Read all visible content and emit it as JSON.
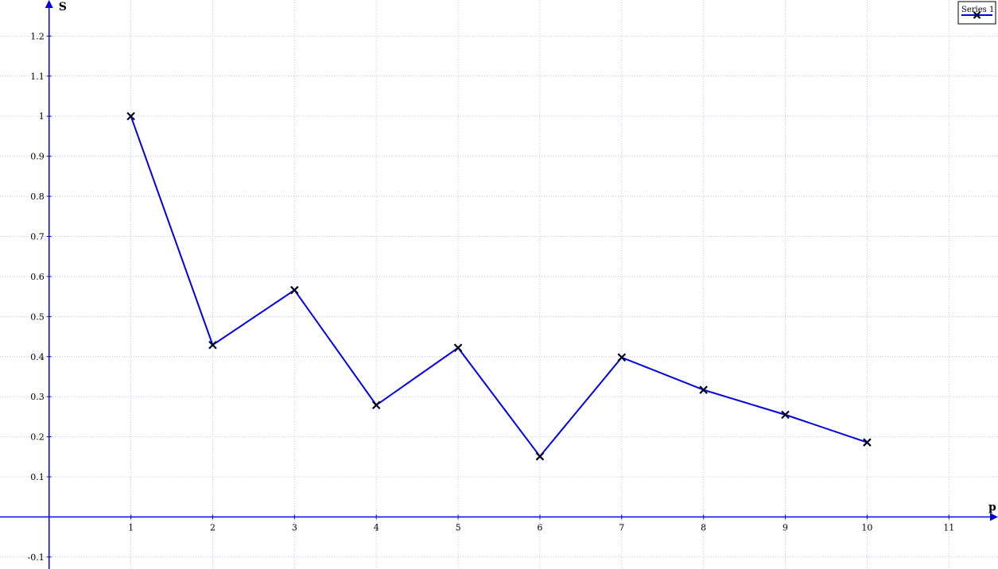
{
  "chart_data": {
    "type": "line",
    "title": "",
    "xlabel": "p",
    "ylabel": "S",
    "xlim": [
      -0.6,
      11.6
    ],
    "ylim": [
      -0.13,
      1.29
    ],
    "xticks": [
      1,
      2,
      3,
      4,
      5,
      6,
      7,
      8,
      9,
      10,
      11
    ],
    "yticks": [
      -0.1,
      0.1,
      0.2,
      0.3,
      0.4,
      0.5,
      0.6,
      0.7,
      0.8,
      0.9,
      1,
      1.1,
      1.2
    ],
    "xtick_labels": [
      "1",
      "2",
      "3",
      "4",
      "5",
      "6",
      "7",
      "8",
      "9",
      "10",
      "11"
    ],
    "ytick_labels": [
      "-0.1",
      "0.1",
      "0.2",
      "0.3",
      "0.4",
      "0.5",
      "0.6",
      "0.7",
      "0.8",
      "0.9",
      "1",
      "1.1",
      "1.2"
    ],
    "grid": true,
    "legend_position": "top-right",
    "series": [
      {
        "name": "Series 1",
        "color": "#0000e0",
        "marker": "x",
        "x": [
          1,
          2,
          3,
          4,
          5,
          6,
          7,
          8,
          9,
          10
        ],
        "y": [
          1.0,
          0.429,
          0.566,
          0.279,
          0.422,
          0.151,
          0.398,
          0.317,
          0.255,
          0.186
        ]
      }
    ]
  }
}
